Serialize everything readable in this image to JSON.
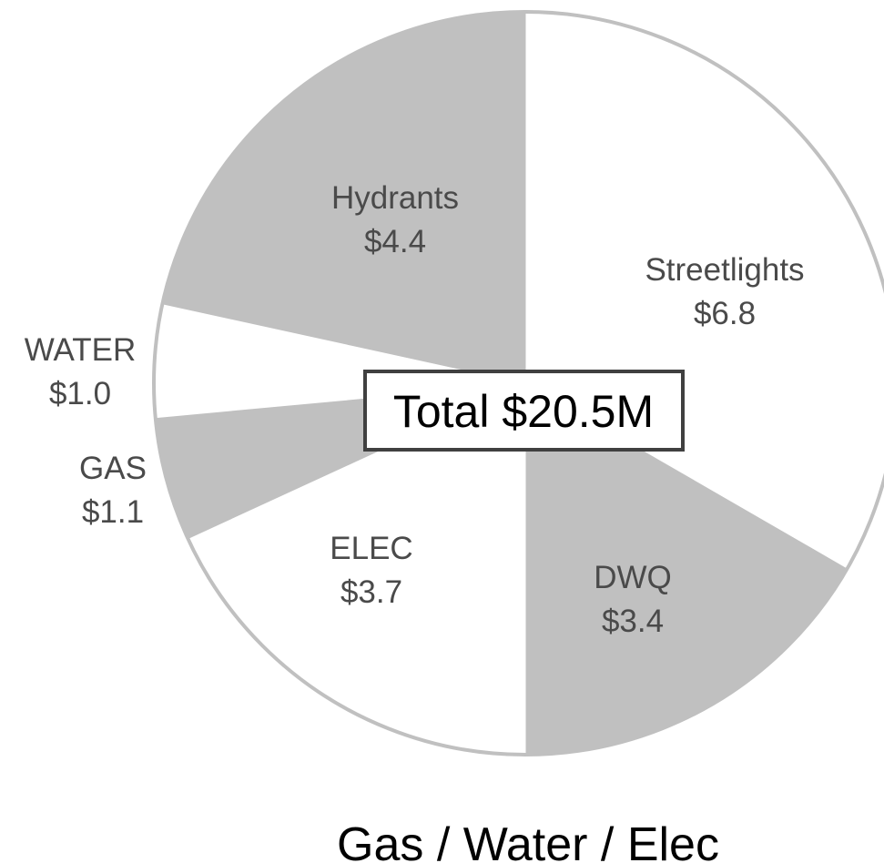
{
  "chart_data": {
    "type": "pie",
    "title": "Gas / Water / Elec",
    "center_label": "Total $20.5M",
    "slices": [
      {
        "label": "Streetlights",
        "value_label": "$6.8",
        "value": 6.8,
        "color": "#ffffff"
      },
      {
        "label": "DWQ",
        "value_label": "$3.4",
        "value": 3.4,
        "color": "#c0c0c0"
      },
      {
        "label": "ELEC",
        "value_label": "$3.7",
        "value": 3.7,
        "color": "#ffffff"
      },
      {
        "label": "GAS",
        "value_label": "$1.1",
        "value": 1.1,
        "color": "#c0c0c0"
      },
      {
        "label": "WATER",
        "value_label": "$1.0",
        "value": 1.0,
        "color": "#ffffff"
      },
      {
        "label": "Hydrants",
        "value_label": "$4.4",
        "value": 4.4,
        "color": "#c0c0c0"
      }
    ],
    "outline_color": "#c0c0c0",
    "legend": "none"
  }
}
